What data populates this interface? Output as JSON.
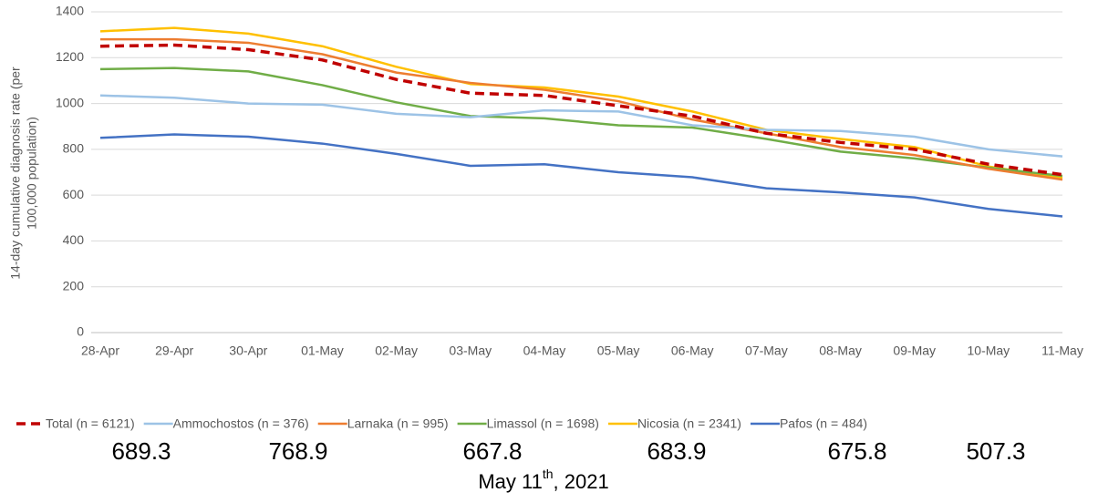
{
  "chart_data": {
    "type": "line",
    "y_label": [
      "14-day cumulative diagnosis rate (per",
      "100,000 population)"
    ],
    "categories": [
      "28-Apr",
      "29-Apr",
      "30-Apr",
      "01-May",
      "02-May",
      "03-May",
      "04-May",
      "05-May",
      "06-May",
      "07-May",
      "08-May",
      "09-May",
      "10-May",
      "11-May"
    ],
    "ylim": [
      0,
      1400
    ],
    "yticks": [
      0,
      200,
      400,
      600,
      800,
      1000,
      1200,
      1400
    ],
    "grid": true,
    "legend": "bottom",
    "series": [
      {
        "name": "Total (n = 6121)",
        "color": "#c00000",
        "dashed": true,
        "values": [
          1250,
          1255,
          1235,
          1190,
          1105,
          1045,
          1035,
          990,
          945,
          870,
          830,
          800,
          735,
          689.3
        ]
      },
      {
        "name": "Ammochostos (n = 376)",
        "color": "#9dc3e6",
        "values": [
          1035,
          1025,
          1000,
          995,
          955,
          940,
          970,
          965,
          905,
          885,
          880,
          855,
          800,
          768.9
        ]
      },
      {
        "name": "Larnaka (n = 995)",
        "color": "#ed7d31",
        "values": [
          1280,
          1280,
          1265,
          1215,
          1135,
          1090,
          1060,
          1010,
          930,
          870,
          810,
          775,
          715,
          667.8
        ]
      },
      {
        "name": "Limassol (n = 1698)",
        "color": "#70ad47",
        "values": [
          1150,
          1155,
          1140,
          1080,
          1005,
          945,
          935,
          905,
          895,
          845,
          790,
          760,
          720,
          683.9
        ]
      },
      {
        "name": "Nicosia (n = 2341)",
        "color": "#ffc000",
        "values": [
          1315,
          1330,
          1305,
          1250,
          1160,
          1085,
          1070,
          1030,
          965,
          885,
          845,
          810,
          725,
          675.8
        ]
      },
      {
        "name": "Pafos (n = 484)",
        "color": "#4472c4",
        "values": [
          850,
          865,
          855,
          825,
          780,
          728,
          735,
          700,
          678,
          630,
          612,
          590,
          540,
          507.3
        ]
      }
    ],
    "footer_values": [
      689.3,
      768.9,
      667.8,
      683.9,
      675.8,
      507.3
    ],
    "caption": {
      "main": "May 11",
      "superscript": "th",
      "rest": ", 2021"
    }
  }
}
